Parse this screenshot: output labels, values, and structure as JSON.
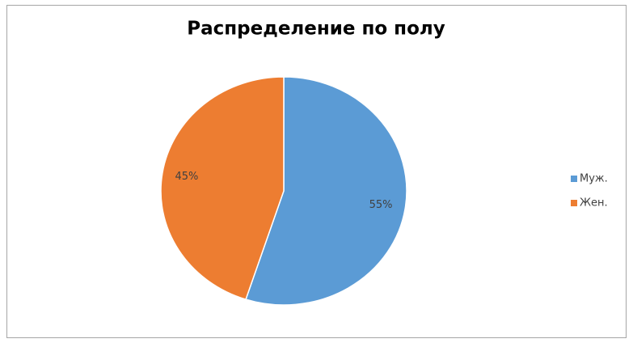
{
  "chart_data": {
    "type": "pie",
    "title": "Распределение по полу",
    "categories": [
      "Муж.",
      "Жен."
    ],
    "values": [
      55,
      45
    ],
    "value_labels": [
      "55%",
      "45%"
    ],
    "colors": [
      "#5b9bd5",
      "#ed7d31"
    ],
    "legend": "right"
  }
}
